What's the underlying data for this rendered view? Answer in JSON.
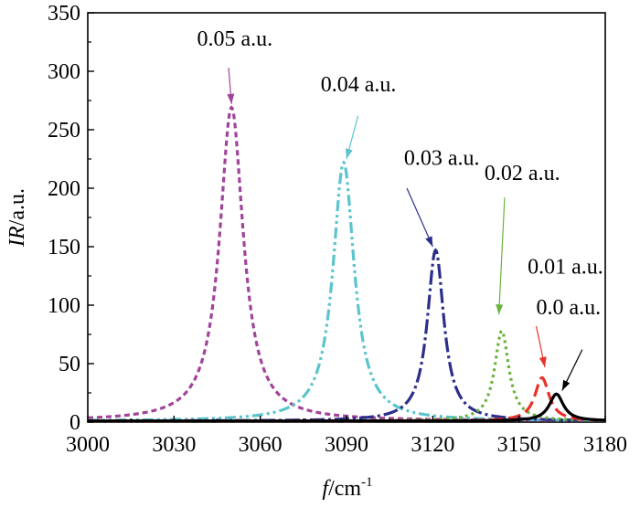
{
  "chart_data": {
    "type": "line",
    "xlabel_italic": "f",
    "xlabel_rest": "/cm",
    "xlabel_sup": "-1",
    "ylabel_italic": "IR",
    "ylabel_rest": "/a.u.",
    "xlim": [
      3000,
      3180
    ],
    "ylim": [
      0,
      350
    ],
    "xticks": [
      "3000",
      "3030",
      "3060",
      "3090",
      "3120",
      "3150",
      "3180"
    ],
    "yticks": [
      "0",
      "50",
      "100",
      "150",
      "200",
      "250",
      "300",
      "350"
    ],
    "grid": false,
    "series": [
      {
        "name": "0.05 a.u.",
        "center": 3050,
        "peak": 268,
        "hwhm": 5.0,
        "color": "#a0449a",
        "dash": "6,4"
      },
      {
        "name": "0.04 a.u.",
        "center": 3089,
        "peak": 221,
        "hwhm": 4.5,
        "color": "#5bc4cc",
        "dash": "12,4,3,4,3,4"
      },
      {
        "name": "0.03 a.u.",
        "center": 3121,
        "peak": 146,
        "hwhm": 3.5,
        "color": "#2b2f8a",
        "dash": "16,4,3,4"
      },
      {
        "name": "0.02 a.u.",
        "center": 3144,
        "peak": 77,
        "hwhm": 3.0,
        "color": "#6cb33c",
        "dash": "3,4"
      },
      {
        "name": "0.01 a.u.",
        "center": 3158,
        "peak": 37,
        "hwhm": 3.0,
        "color": "#e8322b",
        "dash": "14,6"
      },
      {
        "name": "0.0 a.u.",
        "center": 3163,
        "peak": 23,
        "hwhm": 3.0,
        "color": "#000000",
        "dash": ""
      }
    ],
    "annotations": [
      {
        "text": "0.05 a.u.",
        "x": 3038,
        "y": 322,
        "arrow_from": [
          3049,
          303
        ],
        "arrow_to": [
          3050,
          272
        ],
        "color": "#a0449a"
      },
      {
        "text": "0.04 a.u.",
        "x": 3081,
        "y": 283,
        "arrow_from": [
          3094,
          262
        ],
        "arrow_to": [
          3090,
          225
        ],
        "color": "#5bc4cc"
      },
      {
        "text": "0.03 a.u.",
        "x": 3110,
        "y": 220,
        "arrow_from": [
          3111,
          200
        ],
        "arrow_to": [
          3120,
          150
        ],
        "color": "#2b2f8a"
      },
      {
        "text": "0.02 a.u.",
        "x": 3138,
        "y": 207,
        "arrow_from": [
          3145,
          192
        ],
        "arrow_to": [
          3143,
          92
        ],
        "color": "#6cb33c"
      },
      {
        "text": "0.01 a.u.",
        "x": 3153,
        "y": 127,
        "arrow_from": [
          3156,
          82
        ],
        "arrow_to": [
          3159,
          47
        ],
        "color": "#e8322b"
      },
      {
        "text": "0.0 a.u.",
        "x": 3156,
        "y": 92,
        "arrow_from": [
          3172,
          62
        ],
        "arrow_to": [
          3165,
          27
        ],
        "color": "#000000"
      }
    ]
  }
}
